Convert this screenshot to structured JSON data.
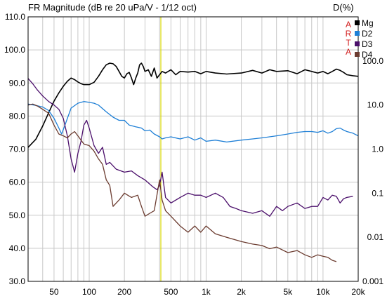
{
  "chart_data": {
    "type": "line",
    "title": "FR Magnitude (dB re 20 uPa/V - 1/12 oct)",
    "right_title": "D(%)",
    "watermark": "ARTA",
    "x_scale": "log",
    "xlim": [
      30,
      20000
    ],
    "ylim": [
      30,
      110
    ],
    "ylim_right": [
      0.001,
      1000
    ],
    "y_ticks": [
      "30.0",
      "40.0",
      "50.0",
      "60.0",
      "70.0",
      "80.0",
      "90.0",
      "100.0",
      "110.0"
    ],
    "y_tick_values": [
      30,
      40,
      50,
      60,
      70,
      80,
      90,
      100,
      110
    ],
    "y_right_ticks": [
      "0.001",
      "0.01",
      "0.1",
      "1.0",
      "10.0",
      "100.0"
    ],
    "y_right_tick_values": [
      0.001,
      0.01,
      0.1,
      1,
      10,
      100
    ],
    "x_ticks": [
      "50",
      "100",
      "200",
      "500",
      "1k",
      "2k",
      "5k",
      "10k",
      "20k"
    ],
    "x_tick_values": [
      50,
      100,
      200,
      500,
      1000,
      2000,
      5000,
      10000,
      20000
    ],
    "marker_x": 410,
    "grid": true,
    "legend_position": "top-right",
    "colors": {
      "Mg": "#000000",
      "D2": "#1e7fd6",
      "D3": "#4b0f6b",
      "D4": "#6b3b2f",
      "marker": "#d8d800",
      "grid": "#c8c8c8",
      "watermark": "#d21e1e"
    },
    "series": [
      {
        "name": "Mg",
        "color": "#000000",
        "points": [
          [
            30,
            70.5
          ],
          [
            35,
            73
          ],
          [
            40,
            77
          ],
          [
            45,
            81
          ],
          [
            50,
            84.5
          ],
          [
            55,
            87
          ],
          [
            60,
            89
          ],
          [
            65,
            90.5
          ],
          [
            70,
            91.5
          ],
          [
            75,
            91
          ],
          [
            80,
            90.3
          ],
          [
            85,
            89.8
          ],
          [
            90,
            89.5
          ],
          [
            100,
            89.5
          ],
          [
            110,
            90.2
          ],
          [
            120,
            92
          ],
          [
            130,
            94
          ],
          [
            140,
            95.5
          ],
          [
            150,
            96
          ],
          [
            160,
            95.8
          ],
          [
            170,
            95
          ],
          [
            180,
            93.5
          ],
          [
            190,
            92
          ],
          [
            200,
            91.5
          ],
          [
            210,
            92.8
          ],
          [
            220,
            93.2
          ],
          [
            230,
            91.5
          ],
          [
            240,
            89.5
          ],
          [
            250,
            91.5
          ],
          [
            260,
            93
          ],
          [
            270,
            95.5
          ],
          [
            280,
            96
          ],
          [
            290,
            95
          ],
          [
            300,
            93.5
          ],
          [
            320,
            94
          ],
          [
            340,
            92
          ],
          [
            360,
            94.5
          ],
          [
            380,
            91.5
          ],
          [
            400,
            92.5
          ],
          [
            420,
            93.5
          ],
          [
            450,
            93
          ],
          [
            500,
            94
          ],
          [
            550,
            92.5
          ],
          [
            600,
            93.5
          ],
          [
            700,
            93.3
          ],
          [
            800,
            93.5
          ],
          [
            900,
            92.8
          ],
          [
            1000,
            93.5
          ],
          [
            1200,
            93
          ],
          [
            1500,
            92.7
          ],
          [
            2000,
            93
          ],
          [
            2500,
            93.8
          ],
          [
            3000,
            93
          ],
          [
            3500,
            94
          ],
          [
            4000,
            93.5
          ],
          [
            5000,
            93.7
          ],
          [
            6000,
            92.8
          ],
          [
            7000,
            94
          ],
          [
            8000,
            93.5
          ],
          [
            9000,
            93
          ],
          [
            10000,
            93.5
          ],
          [
            11000,
            92.8
          ],
          [
            12000,
            93.5
          ],
          [
            13000,
            94.2
          ],
          [
            14000,
            93.8
          ],
          [
            15000,
            93.2
          ],
          [
            16000,
            92.5
          ],
          [
            18000,
            92.2
          ],
          [
            20000,
            92
          ]
        ]
      },
      {
        "name": "D2",
        "color": "#1e7fd6",
        "points": [
          [
            30,
            10.5
          ],
          [
            35,
            9.8
          ],
          [
            40,
            9
          ],
          [
            45,
            7.5
          ],
          [
            50,
            5
          ],
          [
            55,
            3
          ],
          [
            58,
            2.2
          ],
          [
            62,
            3.5
          ],
          [
            70,
            8.5
          ],
          [
            80,
            11
          ],
          [
            90,
            12
          ],
          [
            100,
            11.5
          ],
          [
            110,
            11
          ],
          [
            120,
            10
          ],
          [
            140,
            7
          ],
          [
            160,
            5.3
          ],
          [
            180,
            4.5
          ],
          [
            200,
            4.5
          ],
          [
            220,
            3.5
          ],
          [
            250,
            3.2
          ],
          [
            280,
            3
          ],
          [
            300,
            2.6
          ],
          [
            330,
            2.7
          ],
          [
            360,
            2.2
          ],
          [
            400,
            1.9
          ],
          [
            420,
            1.7
          ],
          [
            450,
            1.8
          ],
          [
            500,
            1.9
          ],
          [
            600,
            1.7
          ],
          [
            700,
            1.9
          ],
          [
            800,
            1.6
          ],
          [
            900,
            1.8
          ],
          [
            1000,
            1.5
          ],
          [
            1200,
            1.6
          ],
          [
            1500,
            1.45
          ],
          [
            2000,
            1.6
          ],
          [
            2500,
            1.7
          ],
          [
            3000,
            1.8
          ],
          [
            4000,
            2
          ],
          [
            5000,
            2.2
          ],
          [
            6000,
            2.4
          ],
          [
            7000,
            2.5
          ],
          [
            8000,
            2.5
          ],
          [
            9000,
            2.4
          ],
          [
            10000,
            2.6
          ],
          [
            11000,
            2.3
          ],
          [
            12000,
            2.5
          ],
          [
            13000,
            2.9
          ],
          [
            14000,
            3
          ],
          [
            15000,
            2.7
          ],
          [
            16000,
            2.5
          ],
          [
            18000,
            2.3
          ],
          [
            20000,
            2
          ]
        ]
      },
      {
        "name": "D3",
        "color": "#4b0f6b",
        "points": [
          [
            30,
            40
          ],
          [
            33,
            30
          ],
          [
            36,
            22
          ],
          [
            40,
            16
          ],
          [
            45,
            12
          ],
          [
            50,
            10
          ],
          [
            55,
            8
          ],
          [
            60,
            5
          ],
          [
            65,
            2
          ],
          [
            70,
            0.6
          ],
          [
            75,
            0.3
          ],
          [
            80,
            0.8
          ],
          [
            85,
            1.5
          ],
          [
            90,
            3.5
          ],
          [
            95,
            4.5
          ],
          [
            100,
            3
          ],
          [
            110,
            1.2
          ],
          [
            120,
            0.8
          ],
          [
            130,
            1.1
          ],
          [
            140,
            0.45
          ],
          [
            150,
            0.5
          ],
          [
            170,
            0.35
          ],
          [
            200,
            0.3
          ],
          [
            230,
            0.32
          ],
          [
            260,
            0.25
          ],
          [
            300,
            0.2
          ],
          [
            350,
            0.14
          ],
          [
            380,
            0.12
          ],
          [
            400,
            0.15
          ],
          [
            420,
            0.3
          ],
          [
            450,
            0.08
          ],
          [
            500,
            0.06
          ],
          [
            600,
            0.08
          ],
          [
            700,
            0.1
          ],
          [
            800,
            0.09
          ],
          [
            900,
            0.09
          ],
          [
            1000,
            0.08
          ],
          [
            1200,
            0.1
          ],
          [
            1400,
            0.08
          ],
          [
            1600,
            0.05
          ],
          [
            1800,
            0.045
          ],
          [
            2000,
            0.04
          ],
          [
            2500,
            0.035
          ],
          [
            3000,
            0.04
          ],
          [
            3500,
            0.03
          ],
          [
            4000,
            0.05
          ],
          [
            4500,
            0.04
          ],
          [
            5000,
            0.05
          ],
          [
            6000,
            0.06
          ],
          [
            7000,
            0.045
          ],
          [
            8000,
            0.05
          ],
          [
            9000,
            0.05
          ],
          [
            10000,
            0.08
          ],
          [
            11000,
            0.07
          ],
          [
            12000,
            0.09
          ],
          [
            13000,
            0.085
          ],
          [
            14000,
            0.06
          ],
          [
            15000,
            0.075
          ],
          [
            16000,
            0.08
          ],
          [
            18000,
            0.085
          ]
        ]
      },
      {
        "name": "D4",
        "color": "#6b3b2f",
        "points": [
          [
            30,
            10
          ],
          [
            33,
            10.5
          ],
          [
            36,
            9.5
          ],
          [
            40,
            8
          ],
          [
            45,
            6.5
          ],
          [
            50,
            3.5
          ],
          [
            55,
            2.2
          ],
          [
            60,
            2
          ],
          [
            65,
            1.8
          ],
          [
            70,
            2.2
          ],
          [
            75,
            2.5
          ],
          [
            80,
            2
          ],
          [
            90,
            1.3
          ],
          [
            100,
            1.2
          ],
          [
            110,
            0.9
          ],
          [
            120,
            0.6
          ],
          [
            130,
            0.45
          ],
          [
            140,
            0.2
          ],
          [
            150,
            0.15
          ],
          [
            160,
            0.05
          ],
          [
            180,
            0.07
          ],
          [
            200,
            0.1
          ],
          [
            230,
            0.08
          ],
          [
            260,
            0.09
          ],
          [
            280,
            0.05
          ],
          [
            300,
            0.03
          ],
          [
            330,
            0.035
          ],
          [
            360,
            0.04
          ],
          [
            400,
            0.2
          ],
          [
            420,
            0.07
          ],
          [
            450,
            0.04
          ],
          [
            500,
            0.03
          ],
          [
            600,
            0.018
          ],
          [
            700,
            0.013
          ],
          [
            800,
            0.018
          ],
          [
            900,
            0.013
          ],
          [
            1000,
            0.018
          ],
          [
            1200,
            0.012
          ],
          [
            1500,
            0.01
          ],
          [
            2000,
            0.008
          ],
          [
            2500,
            0.007
          ],
          [
            3000,
            0.0065
          ],
          [
            3500,
            0.0055
          ],
          [
            4000,
            0.006
          ],
          [
            5000,
            0.0045
          ],
          [
            6000,
            0.005
          ],
          [
            7000,
            0.004
          ],
          [
            8000,
            0.0035
          ],
          [
            9000,
            0.004
          ],
          [
            10000,
            0.0037
          ],
          [
            11000,
            0.0035
          ],
          [
            12000,
            0.003
          ],
          [
            13000,
            0.0028
          ]
        ]
      }
    ]
  }
}
